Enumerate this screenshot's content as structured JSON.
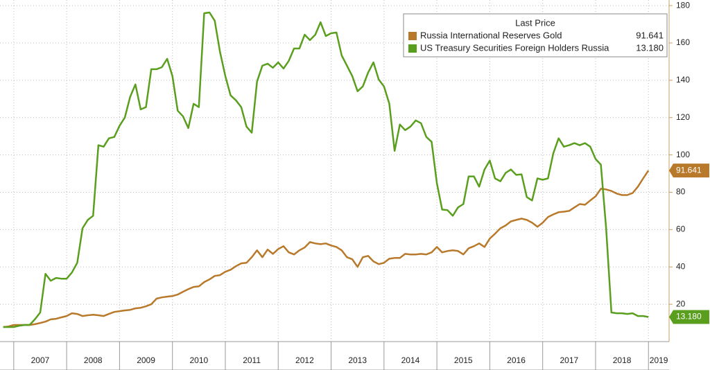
{
  "chart_data": {
    "type": "line",
    "legend_title": "Last Price",
    "legend": "upper right",
    "grid": true,
    "xlim": [
      2006.74,
      2019.39
    ],
    "ylim": [
      0,
      183
    ],
    "yticks": [
      20,
      40,
      60,
      80,
      100,
      120,
      140,
      160,
      180
    ],
    "xticks": [
      {
        "value": 2007.5,
        "label": "2007"
      },
      {
        "value": 2008.5,
        "label": "2008"
      },
      {
        "value": 2009.5,
        "label": "2009"
      },
      {
        "value": 2010.5,
        "label": "2010"
      },
      {
        "value": 2011.5,
        "label": "2011"
      },
      {
        "value": 2012.5,
        "label": "2012"
      },
      {
        "value": 2013.5,
        "label": "2013"
      },
      {
        "value": 2014.5,
        "label": "2014"
      },
      {
        "value": 2015.5,
        "label": "2015"
      },
      {
        "value": 2016.5,
        "label": "2016"
      },
      {
        "value": 2017.5,
        "label": "2017"
      },
      {
        "value": 2018.5,
        "label": "2018"
      },
      {
        "value": 2019.5,
        "label": "2019"
      }
    ],
    "x": [
      2006.8,
      2006.9,
      2007.0,
      2007.1,
      2007.2,
      2007.3,
      2007.4,
      2007.5,
      2007.6,
      2007.7,
      2007.8,
      2007.9,
      2008.0,
      2008.1,
      2008.2,
      2008.3,
      2008.4,
      2008.5,
      2008.6,
      2008.7,
      2008.8,
      2008.9,
      2009.0,
      2009.1,
      2009.2,
      2009.3,
      2009.4,
      2009.5,
      2009.6,
      2009.7,
      2009.8,
      2009.9,
      2010.0,
      2010.1,
      2010.2,
      2010.3,
      2010.4,
      2010.5,
      2010.6,
      2010.7,
      2010.8,
      2010.9,
      2011.0,
      2011.1,
      2011.2,
      2011.3,
      2011.4,
      2011.5,
      2011.6,
      2011.7,
      2011.8,
      2011.9,
      2012.0,
      2012.1,
      2012.2,
      2012.3,
      2012.4,
      2012.5,
      2012.6,
      2012.7,
      2012.8,
      2012.9,
      2013.0,
      2013.1,
      2013.2,
      2013.3,
      2013.4,
      2013.5,
      2013.6,
      2013.7,
      2013.8,
      2013.9,
      2014.0,
      2014.1,
      2014.2,
      2014.3,
      2014.4,
      2014.5,
      2014.6,
      2014.7,
      2014.8,
      2014.9,
      2015.0,
      2015.1,
      2015.2,
      2015.3,
      2015.4,
      2015.5,
      2015.6,
      2015.7,
      2015.8,
      2015.9,
      2016.0,
      2016.1,
      2016.2,
      2016.3,
      2016.4,
      2016.5,
      2016.6,
      2016.7,
      2016.8,
      2016.9,
      2017.0,
      2017.1,
      2017.2,
      2017.3,
      2017.4,
      2017.5,
      2017.6,
      2017.7,
      2017.8,
      2017.9,
      2018.0,
      2018.1,
      2018.2,
      2018.3,
      2018.4,
      2018.5,
      2018.6,
      2018.7,
      2018.8,
      2018.9,
      2019.0
    ],
    "series": [
      {
        "name": "Russia International Reserves Gold",
        "color": "#b8792a",
        "last_label": "91.641",
        "values": [
          7.8,
          8.1,
          8.9,
          8.9,
          8.9,
          8.9,
          9.3,
          10,
          10.7,
          11.9,
          12.2,
          13,
          13.7,
          15.2,
          14.8,
          13.7,
          14.1,
          14.4,
          14.1,
          13.7,
          14.8,
          15.9,
          16.3,
          16.7,
          17,
          17.8,
          18.1,
          18.9,
          20,
          23,
          23.7,
          24.1,
          24.4,
          25.2,
          26.7,
          28.1,
          29.3,
          29.6,
          31.9,
          33.3,
          35.2,
          35.6,
          37.4,
          38.5,
          40.4,
          41.9,
          42.2,
          45.2,
          48.9,
          45.2,
          49.3,
          47,
          49.6,
          51.1,
          47.8,
          46.7,
          48.9,
          50.4,
          53.3,
          52.6,
          52.2,
          52.6,
          51.5,
          50.7,
          48.9,
          45.2,
          44.1,
          40,
          45.2,
          45.9,
          43,
          41.5,
          42.2,
          44.4,
          44.8,
          44.8,
          47,
          46.7,
          46.7,
          47,
          46.7,
          47.8,
          50.7,
          47.8,
          48.5,
          48.9,
          48.5,
          46.7,
          50,
          51.1,
          52.6,
          50.7,
          55.2,
          57.8,
          60.7,
          62.2,
          64.4,
          65.2,
          65.9,
          65.2,
          63.7,
          61.5,
          63.7,
          66.7,
          68.1,
          69.3,
          69.6,
          70,
          71.9,
          73.7,
          73.3,
          75.6,
          77.8,
          81.9,
          81.5,
          80.7,
          79.3,
          78.5,
          78.5,
          79.6,
          83,
          87.4,
          91.641
        ]
      },
      {
        "name": "US Treasury Securities Foreign Holders Russia",
        "color": "#5a9e1e",
        "last_label": "13.180",
        "values": [
          7.8,
          7.8,
          7.8,
          8.5,
          8.9,
          8.9,
          11.9,
          15.6,
          36.3,
          32.6,
          34.1,
          33.7,
          33.7,
          37,
          42.2,
          60.7,
          65.2,
          67.4,
          105.2,
          104.4,
          108.9,
          109.6,
          115.6,
          120,
          131.1,
          137.8,
          124.4,
          125.6,
          145.9,
          145.9,
          147,
          151.5,
          142.2,
          123.7,
          120.7,
          114.4,
          127.4,
          125.6,
          175.9,
          176.3,
          171.9,
          155.2,
          142.2,
          131.9,
          129.3,
          125.6,
          115.2,
          111.9,
          139.3,
          147.8,
          148.9,
          146.7,
          149.6,
          146.3,
          150.4,
          157,
          157,
          164.4,
          161.5,
          164.4,
          171.1,
          163.7,
          165.2,
          165.6,
          153.3,
          147.8,
          142.2,
          134.1,
          136.7,
          144.1,
          149.6,
          140.4,
          136.7,
          127.4,
          102.2,
          116.3,
          113.3,
          115.2,
          118.5,
          117,
          109.6,
          107,
          84.8,
          70.7,
          70.4,
          67.4,
          71.9,
          73.7,
          88.5,
          88.5,
          83,
          92.2,
          97,
          87.4,
          85.9,
          90.4,
          92.2,
          89.3,
          89.6,
          77.4,
          75.6,
          87.4,
          86.7,
          87.4,
          100.7,
          108.9,
          104.4,
          105.2,
          106.3,
          105.2,
          106.3,
          104.4,
          97.8,
          94.8,
          60.7,
          15.6,
          15.2,
          15.2,
          14.8,
          15.2,
          13.7,
          13.7,
          13.18
        ]
      }
    ]
  }
}
